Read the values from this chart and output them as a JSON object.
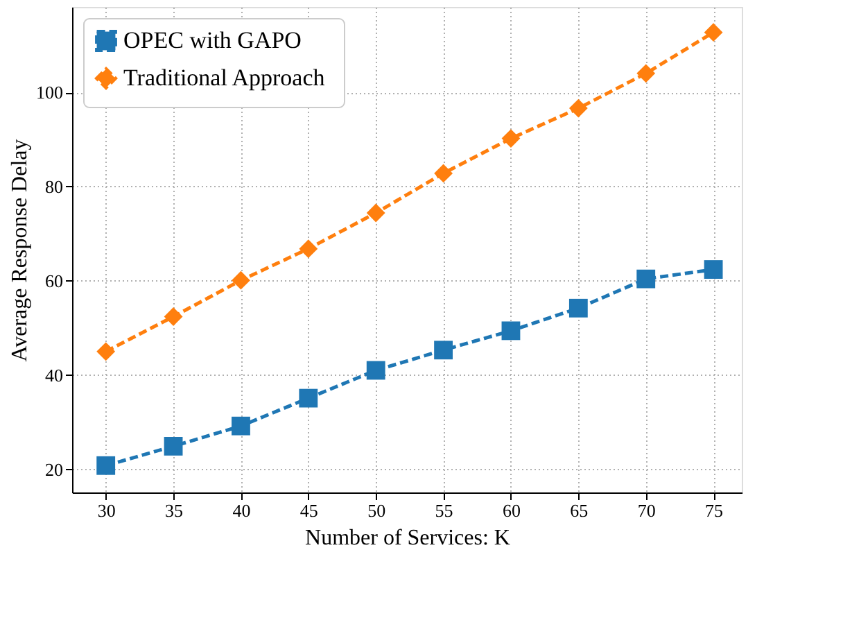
{
  "chart_data": {
    "type": "line",
    "xlabel": "Number of Services: K",
    "ylabel": "Average Response Delay",
    "x": [
      30,
      35,
      40,
      45,
      50,
      55,
      60,
      65,
      70,
      75
    ],
    "series": [
      {
        "name": "OPEC with GAPO",
        "color": "#1f77b4",
        "marker": "square",
        "values": [
          20.8,
          24.9,
          29.2,
          35.1,
          41.0,
          45.3,
          49.4,
          54.2,
          60.4,
          62.4
        ]
      },
      {
        "name": "Traditional  Approach",
        "color": "#ff7f0e",
        "marker": "diamond",
        "values": [
          45.0,
          52.4,
          60.1,
          66.8,
          74.4,
          82.8,
          90.2,
          96.6,
          104.0,
          112.7
        ]
      }
    ],
    "xlim": [
      27.5,
      77.1
    ],
    "xticks": [
      30,
      35,
      40,
      45,
      50,
      55,
      60,
      65,
      70,
      75
    ],
    "ylim": [
      15.1,
      118.1
    ],
    "yticks": [
      20,
      40,
      60,
      80,
      100
    ],
    "grid": true,
    "legend": "top left",
    "line_style": "dashed"
  }
}
